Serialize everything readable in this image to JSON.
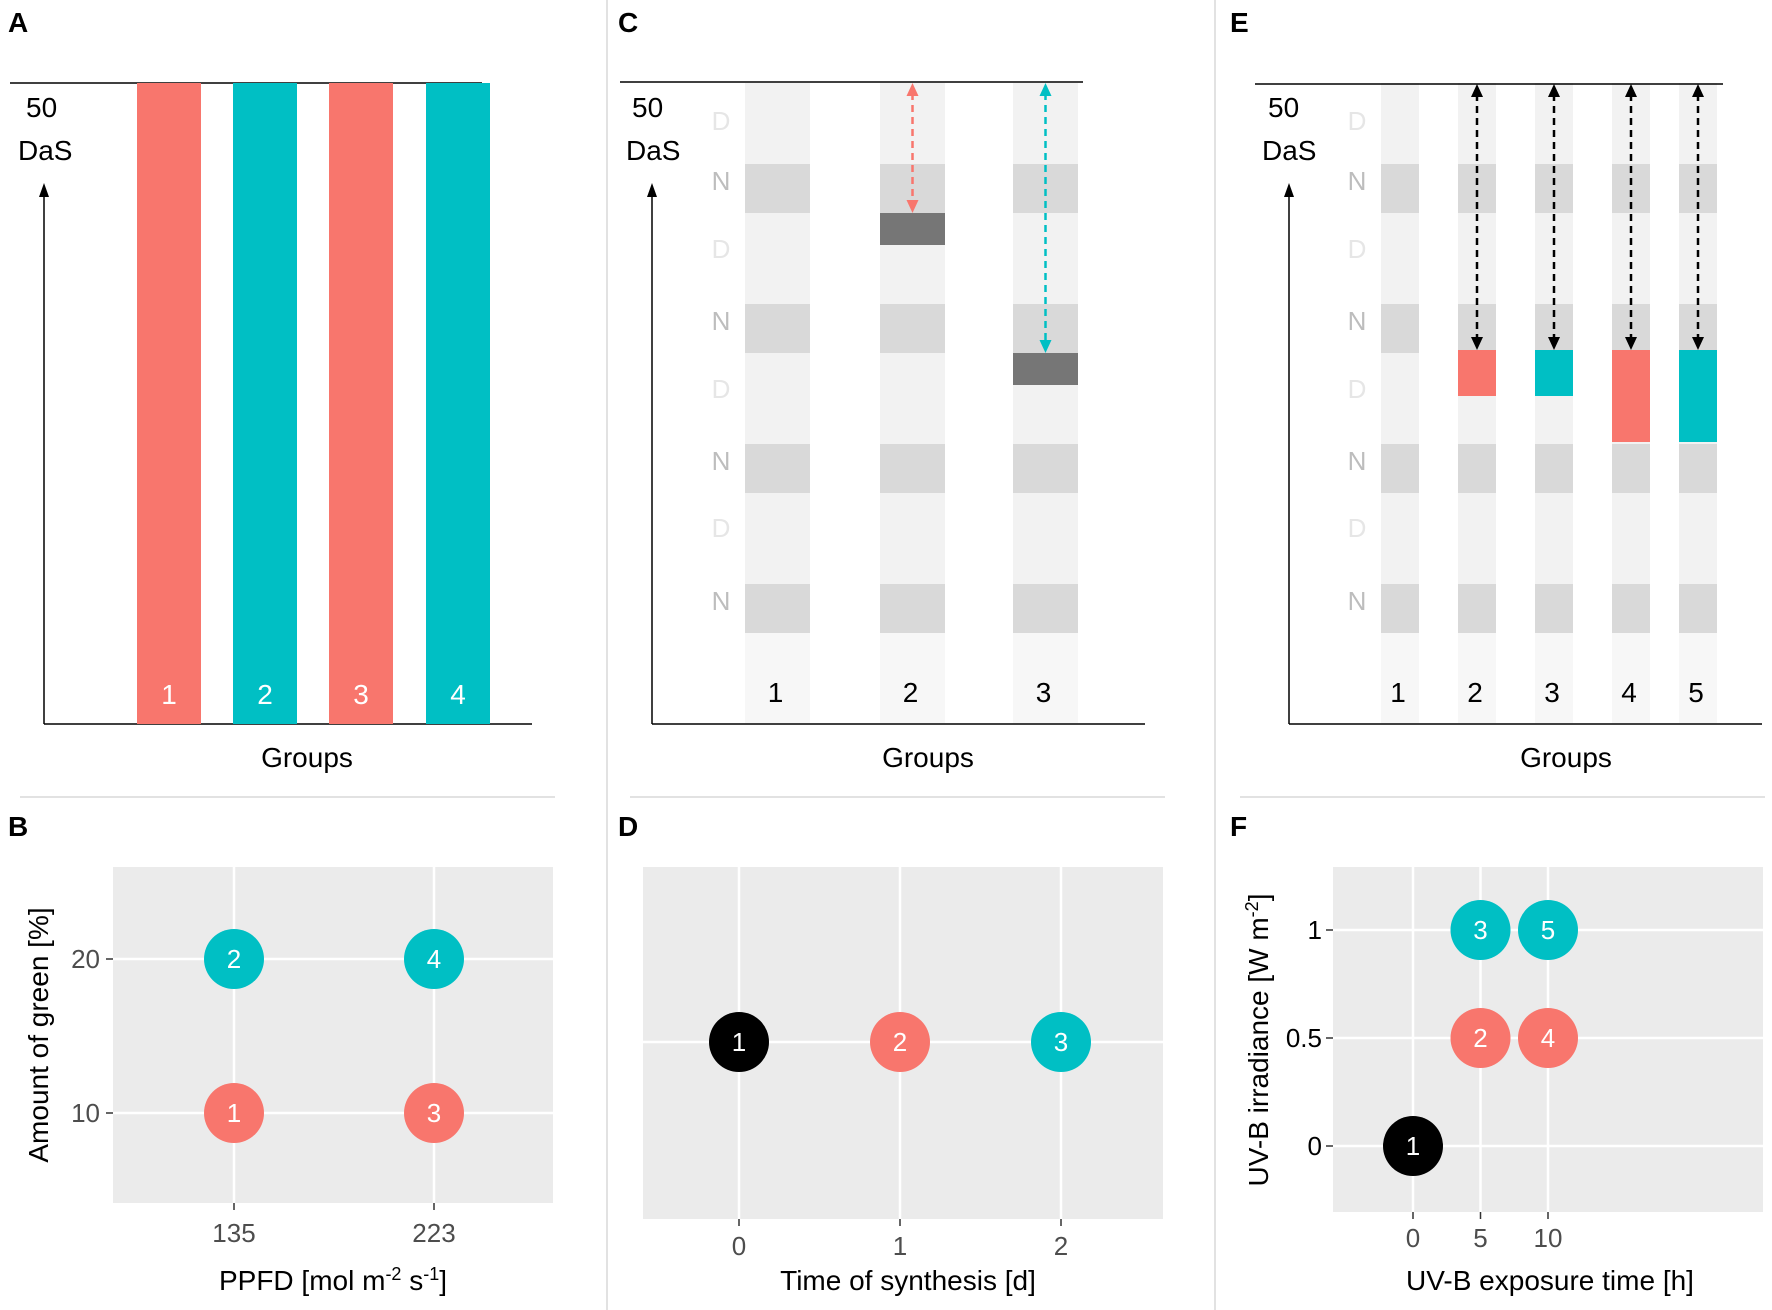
{
  "colors": {
    "red": "#F8766D",
    "teal": "#00BFC4",
    "black": "#000000",
    "panel_bg": "#EBEBEB",
    "marker": "#767676"
  },
  "panels": {
    "A": {
      "label": "A",
      "top_value": "50",
      "top_unit": "DaS",
      "xlabel": "Groups",
      "chart_data": {
        "type": "bar",
        "categories": [
          "1",
          "2",
          "3",
          "4"
        ],
        "values": [
          50,
          50,
          50,
          50
        ],
        "colors": [
          "red",
          "teal",
          "red",
          "teal"
        ],
        "ymax": 50
      }
    },
    "C": {
      "label": "C",
      "top_value": "50",
      "top_unit": "DaS",
      "xlabel": "Groups",
      "day_night": [
        "D",
        "N",
        "D",
        "N",
        "D",
        "N",
        "D",
        "N"
      ],
      "groups": [
        "1",
        "2",
        "3"
      ],
      "chart_data": {
        "type": "timeline",
        "groups": [
          "1",
          "2",
          "3"
        ],
        "treatment_day_index": [
          null,
          1,
          2
        ],
        "arrow_colors": [
          null,
          "red",
          "teal"
        ]
      }
    },
    "E": {
      "label": "E",
      "top_value": "50",
      "top_unit": "DaS",
      "xlabel": "Groups",
      "day_night": [
        "D",
        "N",
        "D",
        "N",
        "D",
        "N",
        "D",
        "N"
      ],
      "groups": [
        "1",
        "2",
        "3",
        "4",
        "5"
      ],
      "chart_data": {
        "type": "timeline",
        "groups": [
          "1",
          "2",
          "3",
          "4",
          "5"
        ],
        "exposure_h": [
          0,
          5,
          5,
          10,
          10
        ],
        "colors": [
          null,
          "red",
          "teal",
          "red",
          "teal"
        ]
      }
    },
    "B": {
      "label": "B",
      "xlabel_main": "PPFD [mol m",
      "xlabel_sup1": "-2",
      "xlabel_mid": " s",
      "xlabel_sup2": "-1",
      "xlabel_end": "]",
      "ylabel": "Amount of green [%]",
      "chart_data": {
        "type": "scatter",
        "x_ticks": [
          "135",
          "223"
        ],
        "y_ticks": [
          "10",
          "20"
        ],
        "points": [
          {
            "x": "135",
            "y": 10,
            "label": "1",
            "color": "red"
          },
          {
            "x": "135",
            "y": 20,
            "label": "2",
            "color": "teal"
          },
          {
            "x": "223",
            "y": 10,
            "label": "3",
            "color": "red"
          },
          {
            "x": "223",
            "y": 20,
            "label": "4",
            "color": "teal"
          }
        ]
      }
    },
    "D": {
      "label": "D",
      "xlabel": "Time of synthesis [d]",
      "chart_data": {
        "type": "scatter",
        "x_ticks": [
          "0",
          "1",
          "2"
        ],
        "points": [
          {
            "x": 0,
            "label": "1",
            "color": "black"
          },
          {
            "x": 1,
            "label": "2",
            "color": "red"
          },
          {
            "x": 2,
            "label": "3",
            "color": "teal"
          }
        ]
      }
    },
    "F": {
      "label": "F",
      "xlabel": "UV-B exposure time [h]",
      "ylabel_main": "UV-B irradiance [W m",
      "ylabel_sup": "-2",
      "ylabel_end": "]",
      "chart_data": {
        "type": "scatter",
        "x_ticks": [
          "0",
          "5",
          "10"
        ],
        "y_ticks": [
          "0",
          "0.5",
          "1"
        ],
        "points": [
          {
            "x": 0,
            "y": 0,
            "label": "1",
            "color": "black"
          },
          {
            "x": 5,
            "y": 0.5,
            "label": "2",
            "color": "red"
          },
          {
            "x": 5,
            "y": 1,
            "label": "3",
            "color": "teal"
          },
          {
            "x": 10,
            "y": 0.5,
            "label": "4",
            "color": "red"
          },
          {
            "x": 10,
            "y": 1,
            "label": "5",
            "color": "teal"
          }
        ]
      }
    }
  }
}
